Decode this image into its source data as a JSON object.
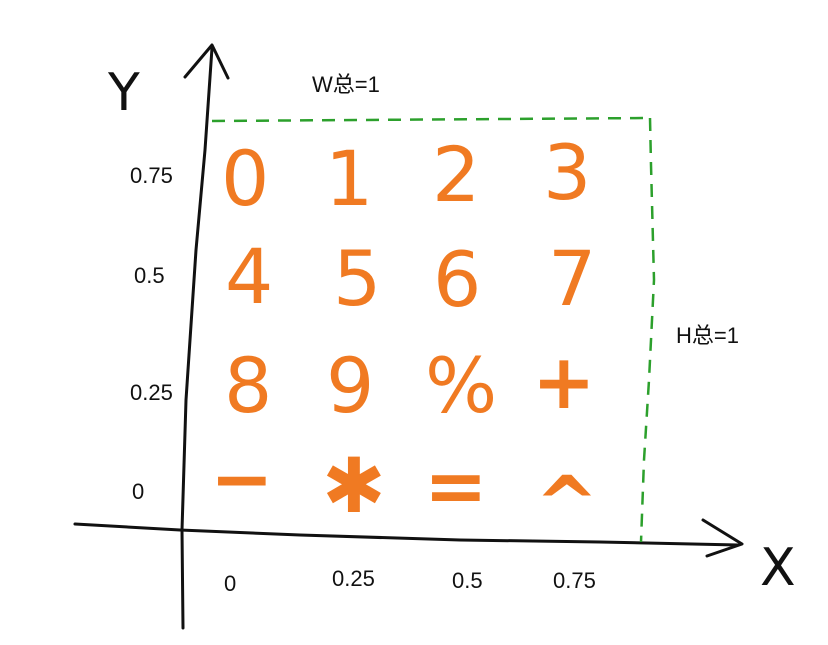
{
  "labels": {
    "width_total": "W总=1",
    "height_total": "H总=1",
    "x_axis_letter": "X",
    "y_axis_letter": "Y"
  },
  "y_ticks": [
    "0.75",
    "0.5",
    "0.25",
    "0"
  ],
  "x_ticks": [
    "0",
    "0.25",
    "0.5",
    "0.75"
  ],
  "grid": [
    [
      "0",
      "1",
      "2",
      "3"
    ],
    [
      "4",
      "5",
      "6",
      "7"
    ],
    [
      "8",
      "9",
      "%",
      "+"
    ],
    [
      "−",
      "✱",
      "=",
      "^"
    ]
  ],
  "colors": {
    "glyph": "#f07a22",
    "dashed_box": "#2ca02c",
    "axis": "#111111"
  }
}
